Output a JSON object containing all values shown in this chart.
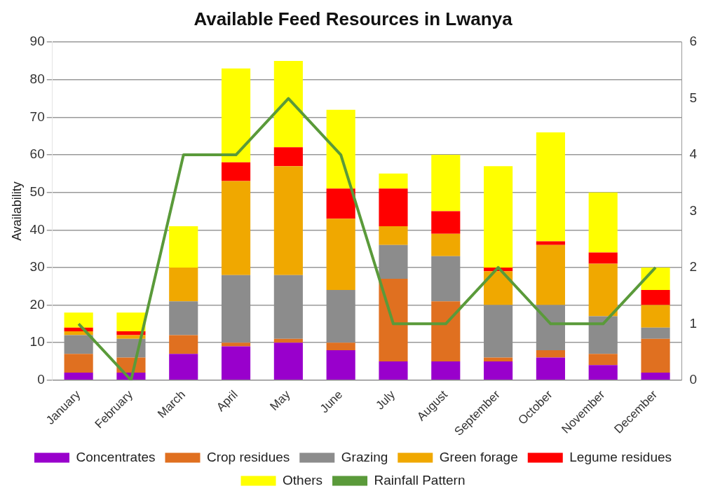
{
  "chart_data": {
    "type": "bar",
    "title": "Available Feed Resources in Lwanya",
    "ylabel": "Availability",
    "categories": [
      "January",
      "February",
      "March",
      "April",
      "May",
      "June",
      "July",
      "August",
      "September",
      "October",
      "November",
      "December"
    ],
    "stacked": true,
    "grid": "y",
    "legend": "bottom",
    "ylim": [
      0,
      90
    ],
    "yticks": [
      0,
      10,
      20,
      30,
      40,
      50,
      60,
      70,
      80,
      90
    ],
    "y2lim": [
      0,
      6
    ],
    "y2ticks": [
      0,
      1,
      2,
      3,
      4,
      5,
      6
    ],
    "series": [
      {
        "name": "Concentrates",
        "color": "#9900cc",
        "values": [
          2,
          2,
          7,
          9,
          10,
          8,
          5,
          5,
          5,
          6,
          4,
          2
        ]
      },
      {
        "name": "Crop residues",
        "color": "#e07020",
        "values": [
          5,
          4,
          5,
          1,
          1,
          2,
          22,
          16,
          1,
          2,
          3,
          9
        ]
      },
      {
        "name": "Grazing",
        "color": "#8c8c8c",
        "values": [
          5,
          5,
          9,
          18,
          17,
          14,
          9,
          12,
          14,
          12,
          10,
          3
        ]
      },
      {
        "name": "Green forage",
        "color": "#f0a800",
        "values": [
          1,
          1,
          9,
          25,
          29,
          19,
          5,
          6,
          9,
          16,
          14,
          6
        ]
      },
      {
        "name": "Legume residues",
        "color": "#ff0000",
        "values": [
          1,
          1,
          0,
          5,
          5,
          8,
          10,
          6,
          1,
          1,
          3,
          4
        ]
      },
      {
        "name": "Others",
        "color": "#ffff00",
        "values": [
          4,
          5,
          11,
          25,
          23,
          21,
          4,
          15,
          27,
          29,
          16,
          6
        ]
      },
      {
        "name": "Rainfall Pattern",
        "type": "line",
        "axis": "y2",
        "color": "#5a9a3a",
        "marker": "none",
        "values": [
          1,
          0,
          4,
          4,
          5,
          4,
          1,
          1,
          2,
          1,
          1,
          2
        ]
      }
    ]
  }
}
